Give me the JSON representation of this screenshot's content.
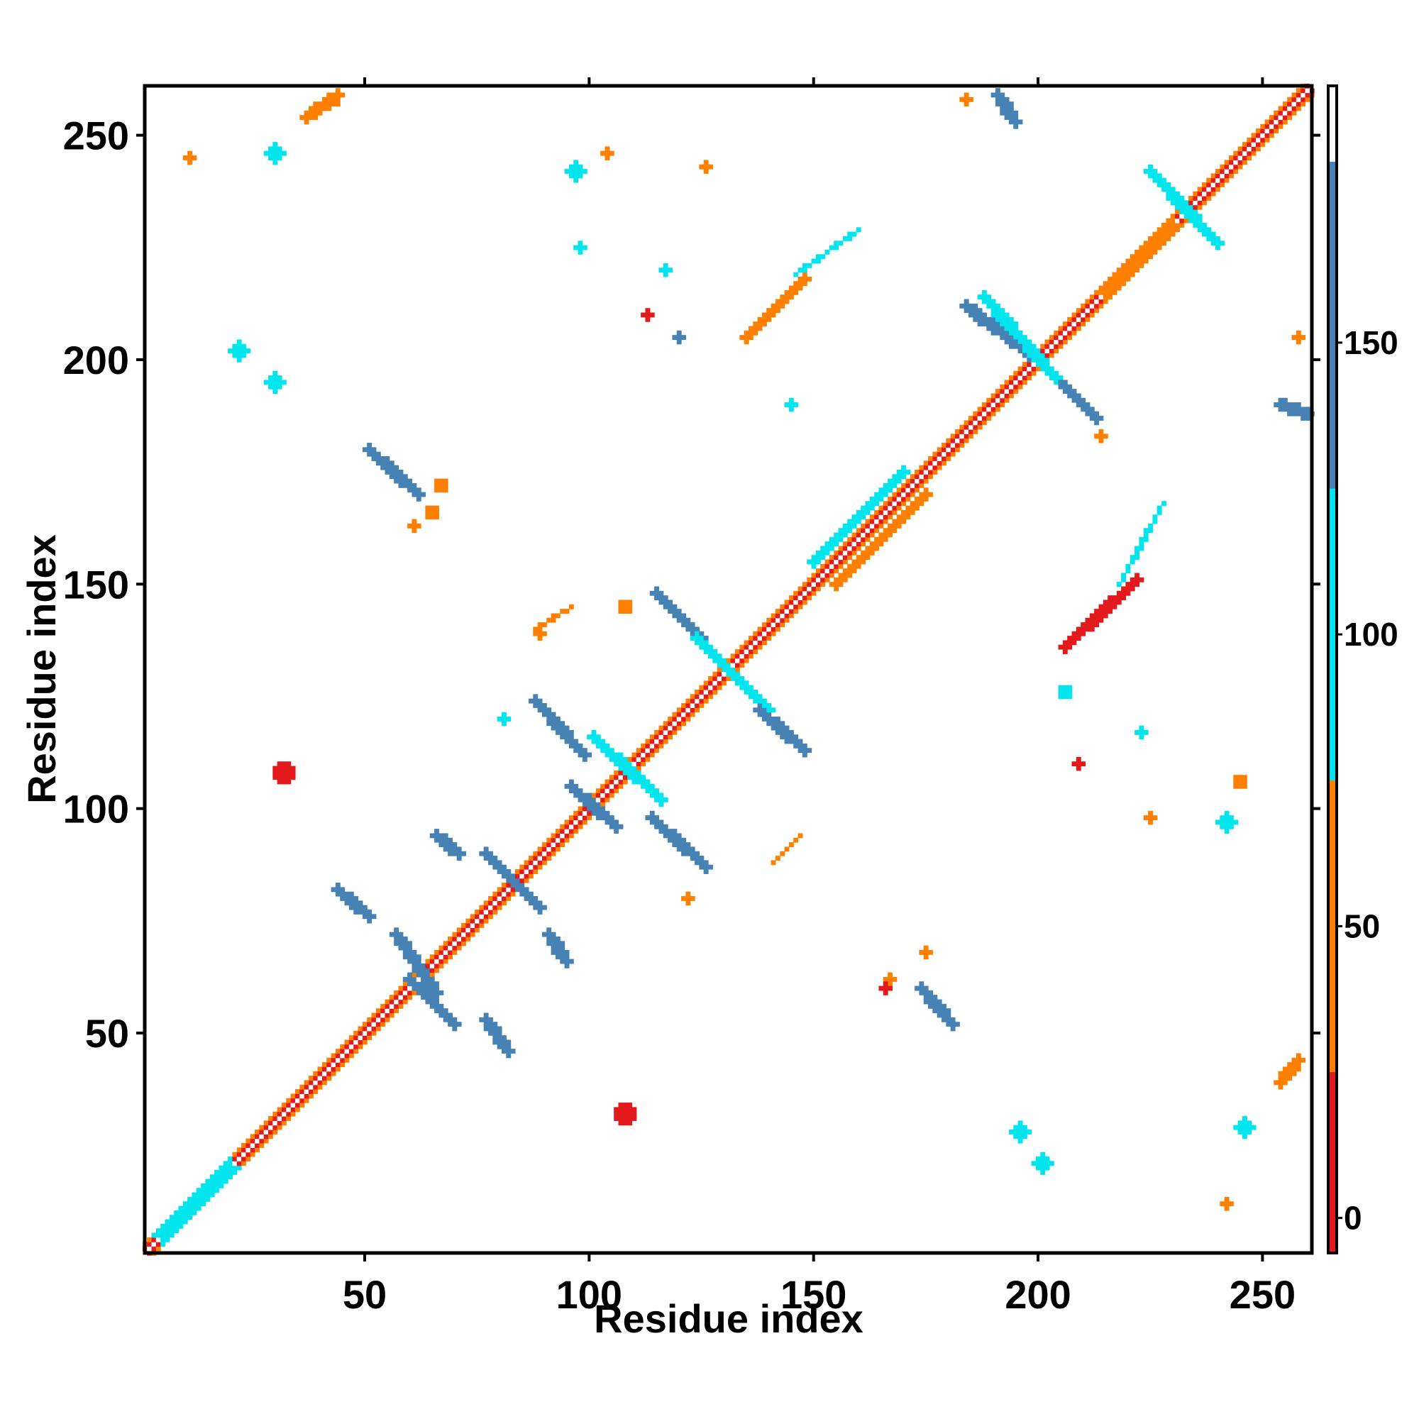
{
  "chart_data": {
    "type": "heatmap",
    "title": "",
    "xlabel": "Residue index",
    "ylabel": "Residue index",
    "xlim": [
      1,
      261
    ],
    "ylim": [
      1,
      261
    ],
    "x_ticks": [
      50,
      100,
      150,
      200,
      250
    ],
    "y_ticks": [
      50,
      100,
      150,
      200,
      250
    ],
    "grid": false,
    "colorbar": {
      "ticks": [
        0,
        50,
        100,
        150
      ],
      "range": [
        -6,
        194
      ],
      "bins": [
        {
          "from": -6,
          "to": 25,
          "color": "#e31a1c"
        },
        {
          "from": 25,
          "to": 75,
          "color": "#ff7f00"
        },
        {
          "from": 75,
          "to": 125,
          "color": "#00e5ee"
        },
        {
          "from": 125,
          "to": 181,
          "color": "#4682b4"
        },
        {
          "from": 181,
          "to": 194,
          "color": "#ffffff"
        }
      ]
    },
    "diagonal": {
      "from": 1,
      "to": 261,
      "width": 2,
      "value": 30
    },
    "segments": [
      {
        "x0": 66,
        "y0": 59,
        "x1": 57,
        "y1": 72,
        "w": 2,
        "value": 150
      },
      {
        "x0": 60,
        "y0": 62,
        "x1": 70,
        "y1": 52,
        "w": 2,
        "value": 150
      },
      {
        "x0": 44,
        "y0": 82,
        "x1": 51,
        "y1": 76,
        "w": 2,
        "value": 160
      },
      {
        "x0": 77,
        "y0": 53,
        "x1": 82,
        "y1": 46,
        "w": 2,
        "value": 160
      },
      {
        "x0": 91,
        "y0": 72,
        "x1": 95,
        "y1": 66,
        "w": 2,
        "value": 150
      },
      {
        "x0": 77,
        "y0": 90,
        "x1": 89,
        "y1": 78,
        "w": 2,
        "value": 150
      },
      {
        "x0": 66,
        "y0": 94,
        "x1": 71,
        "y1": 90,
        "w": 2,
        "value": 160
      },
      {
        "x0": 96,
        "y0": 105,
        "x1": 106,
        "y1": 96,
        "w": 2,
        "value": 150
      },
      {
        "x0": 88,
        "y0": 124,
        "x1": 99,
        "y1": 112,
        "w": 3,
        "value": 130
      },
      {
        "x0": 101,
        "y0": 116,
        "x1": 116,
        "y1": 102,
        "w": 2,
        "value": 120
      },
      {
        "x0": 114,
        "y0": 98,
        "x1": 126,
        "y1": 87,
        "w": 3,
        "value": 140
      },
      {
        "x0": 115,
        "y0": 148,
        "x1": 125,
        "y1": 138,
        "w": 2,
        "value": 150
      },
      {
        "x0": 124,
        "y0": 138,
        "x1": 140,
        "y1": 122,
        "w": 3,
        "value": 100
      },
      {
        "x0": 138,
        "y0": 122,
        "x1": 148,
        "y1": 113,
        "w": 2,
        "value": 140
      },
      {
        "x0": 51,
        "y0": 180,
        "x1": 62,
        "y1": 170,
        "w": 2,
        "value": 150
      },
      {
        "x0": 150,
        "y0": 155,
        "x1": 170,
        "y1": 175,
        "w": 3,
        "value": 100
      },
      {
        "x0": 174,
        "y0": 60,
        "x1": 181,
        "y1": 52,
        "w": 2,
        "value": 160
      },
      {
        "x0": 184,
        "y0": 212,
        "x1": 200,
        "y1": 200,
        "w": 2,
        "value": 150
      },
      {
        "x0": 200,
        "y0": 200,
        "x1": 213,
        "y1": 187,
        "w": 2,
        "value": 150
      },
      {
        "x0": 188,
        "y0": 214,
        "x1": 204,
        "y1": 196,
        "w": 2,
        "value": 100
      },
      {
        "x0": 225,
        "y0": 242,
        "x1": 240,
        "y1": 226,
        "w": 2,
        "value": 110
      },
      {
        "x0": 135,
        "y0": 205,
        "x1": 148,
        "y1": 218,
        "w": 3,
        "value": 30
      },
      {
        "x0": 146,
        "y0": 219,
        "x1": 160,
        "y1": 229,
        "w": 1,
        "value": 90
      },
      {
        "x0": 206,
        "y0": 136,
        "x1": 222,
        "y1": 151,
        "w": 3,
        "value": 20
      },
      {
        "x0": 218,
        "y0": 150,
        "x1": 228,
        "y1": 168,
        "w": 1,
        "value": 90
      },
      {
        "x0": 37,
        "y0": 254,
        "x1": 44,
        "y1": 259,
        "w": 2,
        "value": 60
      },
      {
        "x0": 191,
        "y0": 259,
        "x1": 195,
        "y1": 253,
        "w": 2,
        "value": 160
      },
      {
        "x0": 254,
        "y0": 190,
        "x1": 260,
        "y1": 188,
        "w": 2,
        "value": 160
      },
      {
        "x0": 254,
        "y0": 39,
        "x1": 258,
        "y1": 44,
        "w": 2,
        "value": 60
      },
      {
        "x0": 5,
        "y0": 5,
        "x1": 20,
        "y1": 20,
        "w": 5,
        "value": 110
      },
      {
        "x0": 155,
        "y0": 150,
        "x1": 175,
        "y1": 170,
        "w": 3,
        "value": 50
      },
      {
        "x0": 215,
        "y0": 215,
        "x1": 230,
        "y1": 230,
        "w": 3,
        "value": 60
      },
      {
        "x0": 88,
        "y0": 140,
        "x1": 96,
        "y1": 145,
        "w": 1,
        "value": 55
      },
      {
        "x0": 141,
        "y0": 88,
        "x1": 147,
        "y1": 94,
        "w": 1,
        "value": 55
      }
    ],
    "blobs": [
      {
        "x": 32,
        "y": 108,
        "r": 2.5,
        "value": 10
      },
      {
        "x": 108,
        "y": 32,
        "r": 2.5,
        "value": 10
      },
      {
        "x": 97,
        "y": 242,
        "r": 2,
        "value": 95
      },
      {
        "x": 242,
        "y": 97,
        "r": 2,
        "value": 95
      },
      {
        "x": 30,
        "y": 195,
        "r": 2,
        "value": 100
      },
      {
        "x": 22,
        "y": 202,
        "r": 2,
        "value": 100
      },
      {
        "x": 30,
        "y": 246,
        "r": 2,
        "value": 110
      },
      {
        "x": 11,
        "y": 245,
        "r": 1.2,
        "value": 40
      },
      {
        "x": 104,
        "y": 246,
        "r": 1.2,
        "value": 40
      },
      {
        "x": 126,
        "y": 243,
        "r": 1.2,
        "value": 40
      },
      {
        "x": 196,
        "y": 28,
        "r": 2,
        "value": 100
      },
      {
        "x": 201,
        "y": 21,
        "r": 2,
        "value": 100
      },
      {
        "x": 246,
        "y": 29,
        "r": 2,
        "value": 100
      },
      {
        "x": 242,
        "y": 12,
        "r": 1.2,
        "value": 40
      },
      {
        "x": 245,
        "y": 106,
        "r": 1.5,
        "value": 40
      },
      {
        "x": 81,
        "y": 120,
        "r": 1.2,
        "value": 100
      },
      {
        "x": 67,
        "y": 172,
        "r": 1.5,
        "value": 40
      },
      {
        "x": 65,
        "y": 166,
        "r": 1.5,
        "value": 40
      },
      {
        "x": 108,
        "y": 145,
        "r": 1.5,
        "value": 40
      },
      {
        "x": 122,
        "y": 80,
        "r": 1.2,
        "value": 70
      },
      {
        "x": 175,
        "y": 68,
        "r": 1.2,
        "value": 40
      },
      {
        "x": 167,
        "y": 62,
        "r": 1.2,
        "value": 40
      },
      {
        "x": 206,
        "y": 126,
        "r": 1.5,
        "value": 100
      },
      {
        "x": 214,
        "y": 183,
        "r": 1.2,
        "value": 60
      },
      {
        "x": 223,
        "y": 117,
        "r": 1.2,
        "value": 100
      },
      {
        "x": 98,
        "y": 225,
        "r": 1.2,
        "value": 100
      },
      {
        "x": 117,
        "y": 220,
        "r": 1.2,
        "value": 100
      },
      {
        "x": 113,
        "y": 210,
        "r": 1.2,
        "value": 10
      },
      {
        "x": 120,
        "y": 205,
        "r": 1.2,
        "value": 130
      },
      {
        "x": 145,
        "y": 190,
        "r": 1.2,
        "value": 100
      },
      {
        "x": 209,
        "y": 110,
        "r": 1.2,
        "value": 10
      },
      {
        "x": 225,
        "y": 98,
        "r": 1.2,
        "value": 60
      },
      {
        "x": 166,
        "y": 60,
        "r": 1.2,
        "value": 20
      },
      {
        "x": 43,
        "y": 258,
        "r": 1.5,
        "value": 50
      },
      {
        "x": 258,
        "y": 205,
        "r": 1.2,
        "value": 50
      },
      {
        "x": 61,
        "y": 163,
        "r": 1.2,
        "value": 40
      },
      {
        "x": 89,
        "y": 139,
        "r": 1.2,
        "value": 60
      },
      {
        "x": 184,
        "y": 258,
        "r": 1.2,
        "value": 50
      }
    ]
  }
}
